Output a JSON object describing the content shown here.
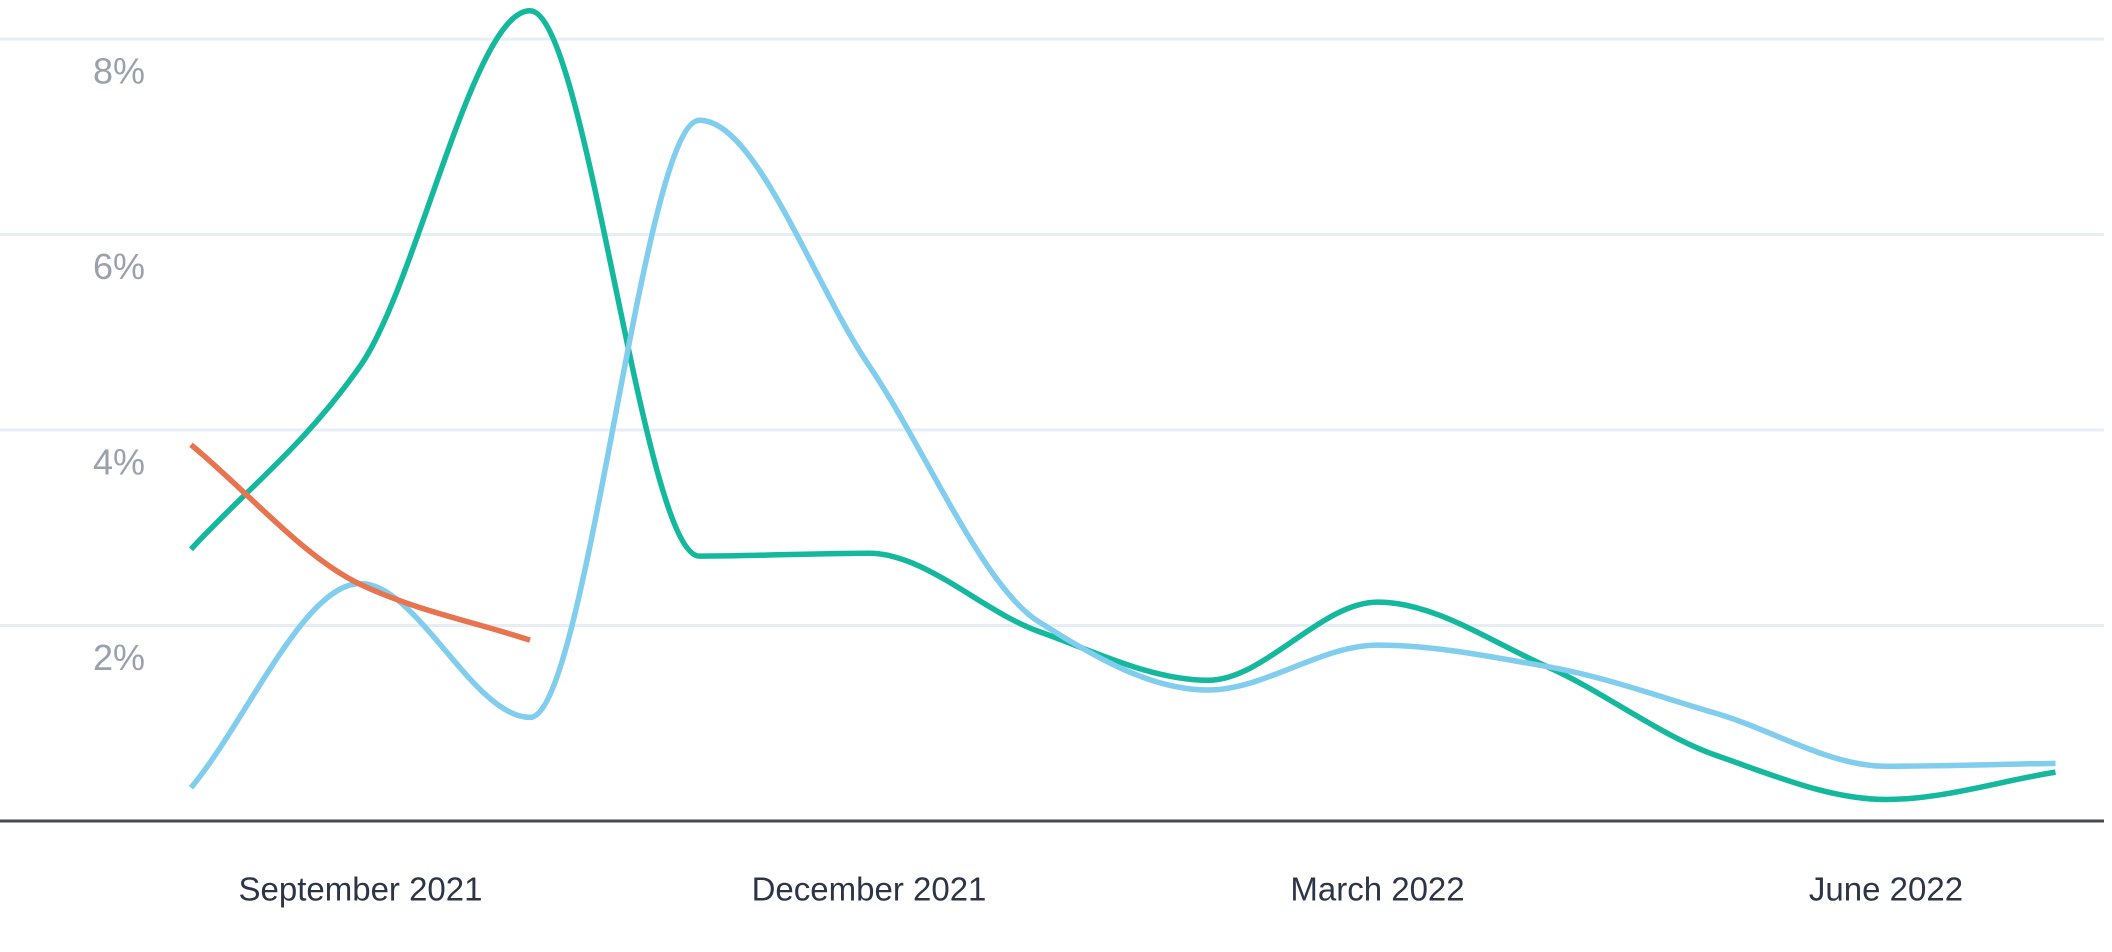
{
  "chart_data": {
    "type": "line",
    "categories": [
      null,
      "September 2021",
      null,
      null,
      "December 2021",
      null,
      null,
      "March 2022",
      null,
      null,
      "June 2022",
      null
    ],
    "series": [
      {
        "name": null,
        "color": "#14b89c",
        "values": [
          2.78,
          4.66,
          8.29,
          2.71,
          2.74,
          1.94,
          1.44,
          2.24,
          1.58,
          0.67,
          0.22,
          0.5
        ]
      },
      {
        "name": null,
        "color": "#80cdee",
        "values": [
          0.34,
          2.43,
          1.06,
          7.17,
          4.66,
          2.04,
          1.34,
          1.8,
          1.58,
          1.1,
          0.56,
          0.59
        ]
      },
      {
        "name": null,
        "color": "#e8734f",
        "values": [
          3.85,
          2.42,
          1.85,
          null,
          null,
          null,
          null,
          null,
          null,
          null,
          null,
          null
        ]
      }
    ],
    "ylim": [
      0,
      8.4
    ],
    "yticks": [
      {
        "value": 2,
        "label": "2%"
      },
      {
        "value": 4,
        "label": "4%"
      },
      {
        "value": 6,
        "label": "6%"
      },
      {
        "value": 8,
        "label": "8%"
      }
    ],
    "grid": true
  }
}
